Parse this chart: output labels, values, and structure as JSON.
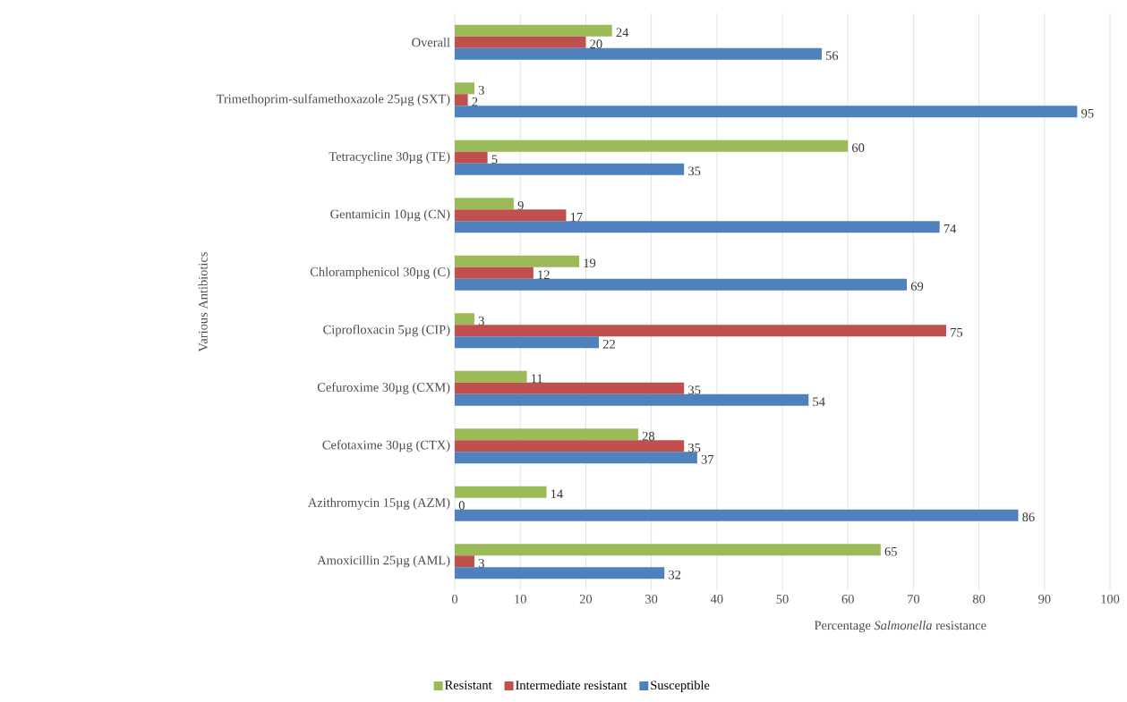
{
  "chart_data": {
    "type": "bar",
    "orientation": "horizontal",
    "xlabel": "Percentage *Salmonella* resistance",
    "ylabel": "Various Antibiotics",
    "categories": [
      "Overall",
      "Trimethoprim-sulfamethoxazole 25µg (SXT)",
      "Tetracycline 30µg (TE)",
      "Gentamicin 10µg (CN)",
      "Chloramphenicol 30µg (C)",
      "Ciprofloxacin 5µg (CIP)",
      "Cefuroxime 30µg (CXM)",
      "Cefotaxime 30µg (CTX)",
      "Azithromycin 15µg (AZM)",
      "Amoxicillin 25µg (AML)"
    ],
    "series": [
      {
        "name": "Resistant",
        "color": "#9bbb59",
        "values": [
          24,
          3,
          60,
          9,
          19,
          3,
          11,
          28,
          14,
          65
        ]
      },
      {
        "name": "Intermediate resistant",
        "color": "#c0504d",
        "values": [
          20,
          2,
          5,
          17,
          12,
          75,
          35,
          35,
          0,
          3
        ]
      },
      {
        "name": "Susceptible",
        "color": "#4f81bd",
        "values": [
          56,
          95,
          35,
          74,
          69,
          22,
          54,
          37,
          86,
          32
        ]
      }
    ],
    "xlim": [
      0,
      100
    ],
    "xticks": [
      0,
      10,
      20,
      30,
      40,
      50,
      60,
      70,
      80,
      90,
      100
    ],
    "grid": "x",
    "legend": "bottom",
    "data_labels": true
  }
}
